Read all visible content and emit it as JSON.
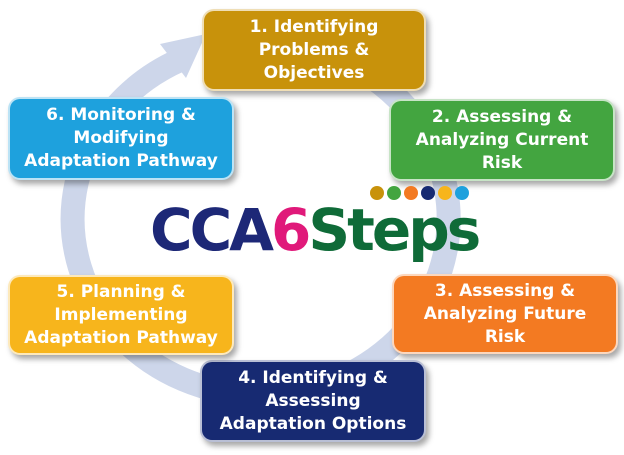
{
  "diagram": {
    "steps": [
      {
        "lines": [
          "1. Identifying",
          "Problems &",
          "Objectives"
        ],
        "color": "#c8920b"
      },
      {
        "lines": [
          "2. Assessing &",
          "Analyzing Current",
          "Risk"
        ],
        "color": "#43a540"
      },
      {
        "lines": [
          "3. Assessing &",
          "Analyzing Future",
          "Risk"
        ],
        "color": "#f37a22"
      },
      {
        "lines": [
          "4. Identifying &",
          "Assessing",
          "Adaptation Options"
        ],
        "color": "#172a72"
      },
      {
        "lines": [
          "5. Planning &",
          "Implementing",
          "Adaptation Pathway"
        ],
        "color": "#f7b51c"
      },
      {
        "lines": [
          "6. Monitoring &",
          "Modifying",
          "Adaptation Pathway"
        ],
        "color": "#1ea1dd"
      }
    ],
    "logo": {
      "prefix": "CCA",
      "number": "6",
      "suffix": "Steps",
      "dot_colors": [
        "#c8920b",
        "#43a540",
        "#f37a22",
        "#172a72",
        "#f7b51c",
        "#1ea1dd"
      ]
    },
    "ring_color": "#cdd6ea"
  }
}
